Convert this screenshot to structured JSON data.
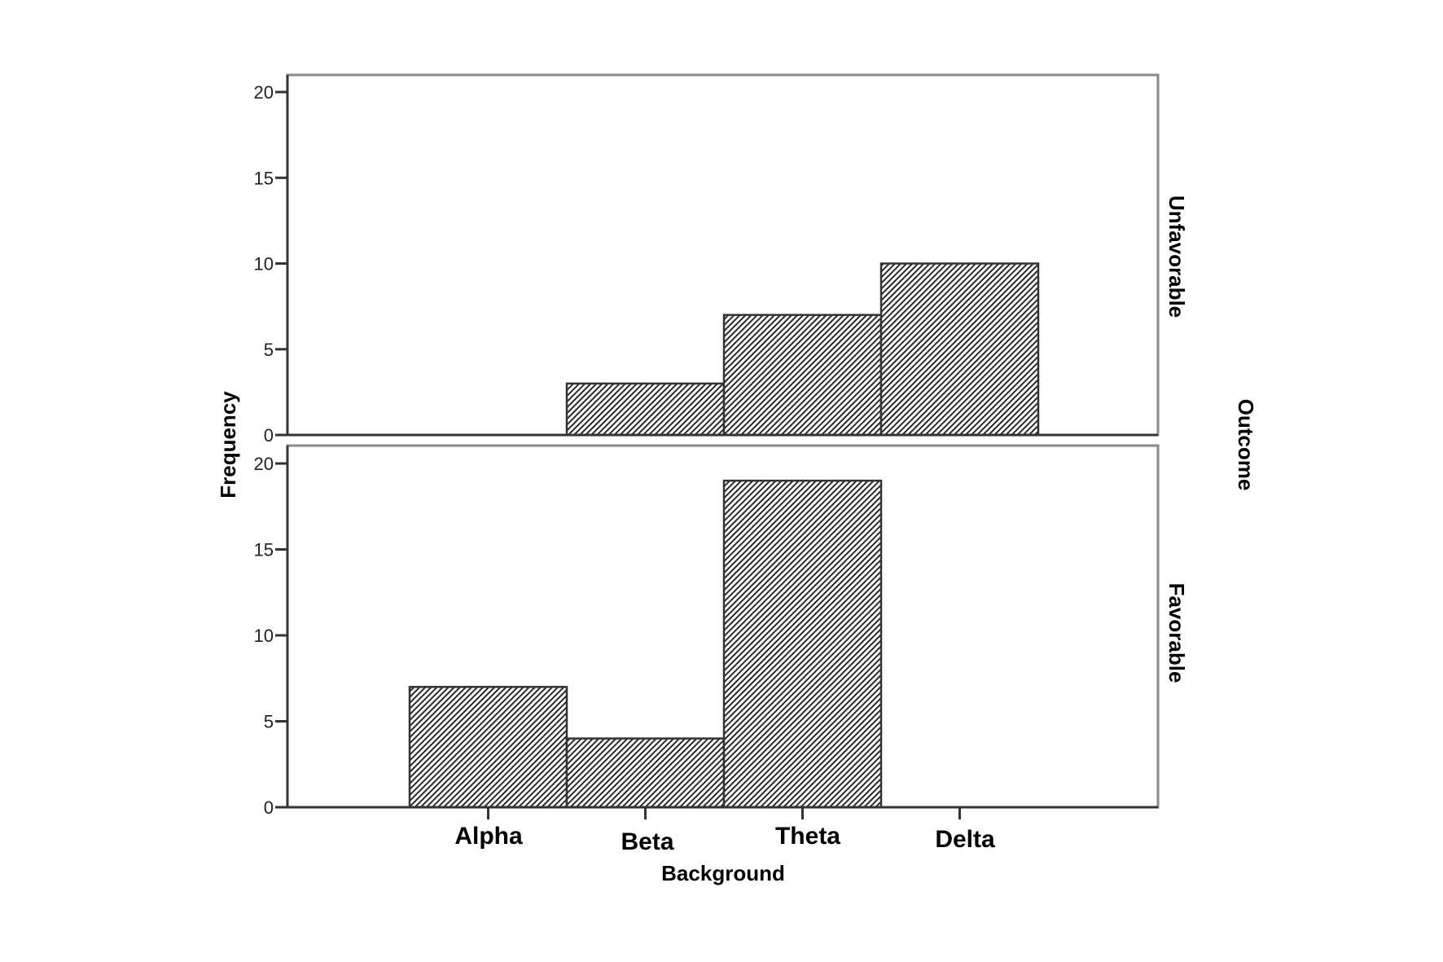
{
  "chart_data": {
    "type": "bar",
    "title": "",
    "xlabel": "Background",
    "ylabel": "Frequency",
    "facet_label": "Outcome",
    "categories": [
      "Alpha",
      "Beta",
      "Theta",
      "Delta"
    ],
    "ylim": [
      0,
      20
    ],
    "yticks": [
      0,
      5,
      10,
      15,
      20
    ],
    "grid": false,
    "legend": "none",
    "fill_pattern": "diagonal-hatch",
    "panels": [
      {
        "name": "Unfavorable",
        "values": [
          0,
          3,
          7,
          10
        ]
      },
      {
        "name": "Favorable",
        "values": [
          7,
          4,
          19,
          0
        ]
      }
    ],
    "series": [
      {
        "name": "Unfavorable",
        "values": [
          0,
          3,
          7,
          10
        ]
      },
      {
        "name": "Favorable",
        "values": [
          7,
          4,
          19,
          0
        ]
      }
    ]
  },
  "labels": {
    "xlabel": "Background",
    "ylabel": "Frequency",
    "facet": "Outcome",
    "panel_top": "Unfavorable",
    "panel_bottom": "Favorable",
    "cat0": "Alpha",
    "cat1": "Beta",
    "cat2": "Theta",
    "cat3": "Delta",
    "tick0": "0",
    "tick5": "5",
    "tick10": "10",
    "tick15": "15",
    "tick20": "20"
  },
  "colors": {
    "bar_stroke": "#333333",
    "hatch": "#2a2a2a",
    "frame": "#8a8a8a",
    "axis": "#333333"
  }
}
